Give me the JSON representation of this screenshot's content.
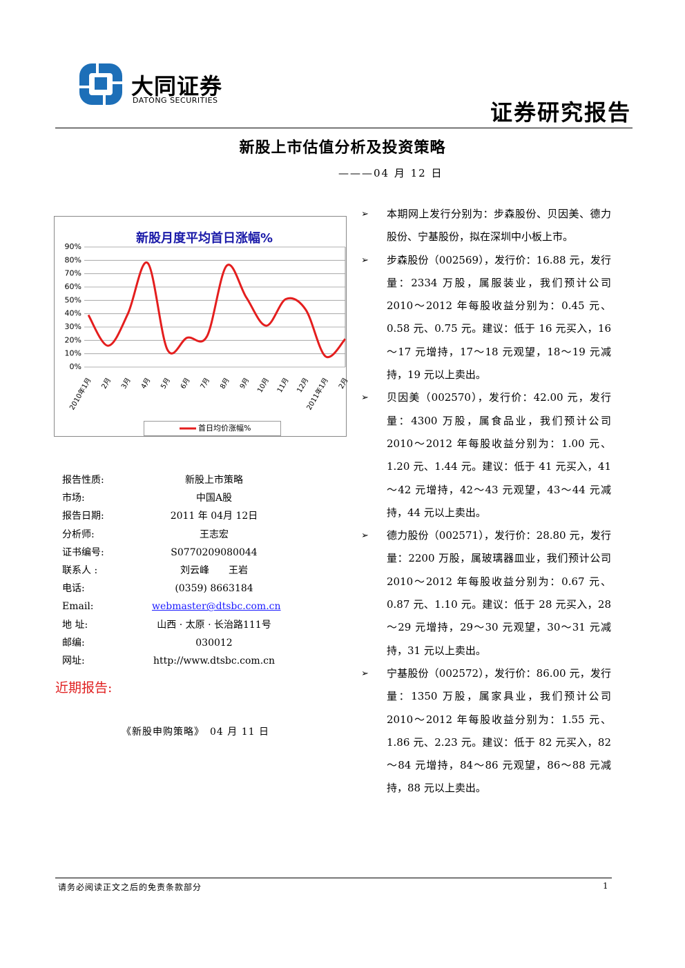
{
  "header": {
    "company": "大同证券",
    "company_en": "DATONG SECURITIES",
    "report_type": "证券研究报告"
  },
  "title": "新股上市估值分析及投资策略",
  "subtitle": "———04 月 12 日",
  "chart_data": {
    "type": "line",
    "title": "新股月度平均首日涨幅%",
    "categories": [
      "2010年1月",
      "2月",
      "3月",
      "4月",
      "5月",
      "6月",
      "7月",
      "8月",
      "9月",
      "10月",
      "11月",
      "12月",
      "2011年1月",
      "2月"
    ],
    "series": [
      {
        "name": "首日均价涨幅%",
        "color": "#e41e1e",
        "values": [
          39,
          16,
          40,
          78,
          13,
          22,
          23,
          76,
          52,
          31,
          51,
          43,
          8,
          21
        ]
      }
    ],
    "ylim": [
      0,
      90
    ],
    "yticks": [
      {
        "value": 0,
        "label": "0%"
      },
      {
        "value": 10,
        "label": "10%"
      },
      {
        "value": 20,
        "label": "20%"
      },
      {
        "value": 30,
        "label": "30%"
      },
      {
        "value": 40,
        "label": "40%"
      },
      {
        "value": 50,
        "label": "50%"
      },
      {
        "value": 60,
        "label": "60%"
      },
      {
        "value": 70,
        "label": "70%"
      },
      {
        "value": 80,
        "label": "80%"
      },
      {
        "value": 90,
        "label": "90%"
      }
    ],
    "grid": true,
    "legend": "bottom"
  },
  "info": [
    [
      "报告性质:",
      "新股上市策略"
    ],
    [
      "市场:",
      "中国A股"
    ],
    [
      "报告日期:",
      "2011 年 04月 12日"
    ],
    [
      "分析师:",
      "王志宏"
    ],
    [
      "证书编号:",
      "S0770209080044"
    ],
    [
      "联系人 :",
      "刘云峰　　王岩"
    ],
    [
      "电话:",
      "(0359) 8663184"
    ],
    [
      "Email:",
      "webmaster@dtsbc.com.cn"
    ],
    [
      "地 址:",
      "山西 · 太原 · 长治路111号"
    ],
    [
      "邮编:",
      "030012"
    ],
    [
      "网址:",
      "http://www.dtsbc.com.cn"
    ]
  ],
  "recent": {
    "heading": "近期报告:",
    "items": [
      "《新股申购策略》　04 月 11 日"
    ]
  },
  "bullets": [
    "本期网上发行分别为：步森股份、贝因美、德力股份、宁基股份，拟在深圳中小板上市。",
    "步森股份（002569），发行价：16.88 元，发行量：2334 万股，属服装业，我们预计公司 2010～2012 年每股收益分别为：0.45 元、0.58 元、0.75 元。建议：低于 16 元买入，16～17 元增持，17～18 元观望，18～19 元减持，19 元以上卖出。",
    "贝因美（002570），发行价：42.00 元，发行量：4300 万股，属食品业，我们预计公司 2010～2012 年每股收益分别为：1.00 元、1.20 元、1.44 元。建议：低于 41 元买入，41～42 元增持，42～43 元观望，43～44 元减持，44 元以上卖出。",
    "德力股份（002571），发行价：28.80 元，发行量：2200 万股，属玻璃器皿业，我们预计公司 2010～2012 年每股收益分别为：0.67 元、0.87 元、1.10 元。建议：低于 28 元买入，28～29 元增持，29～30 元观望，30～31 元减持，31 元以上卖出。",
    "宁基股份（002572），发行价：86.00 元，发行量：1350 万股，属家具业，我们预计公司 2010～2012 年每股收益分别为：1.55 元、1.86 元、2.23 元。建议：低于 82 元买入，82～84 元增持，84～86 元观望，86～88 元减持，88 元以上卖出。"
  ],
  "footer": {
    "disclaimer": "请务必阅读正文之后的免责条款部分",
    "page": "1"
  }
}
